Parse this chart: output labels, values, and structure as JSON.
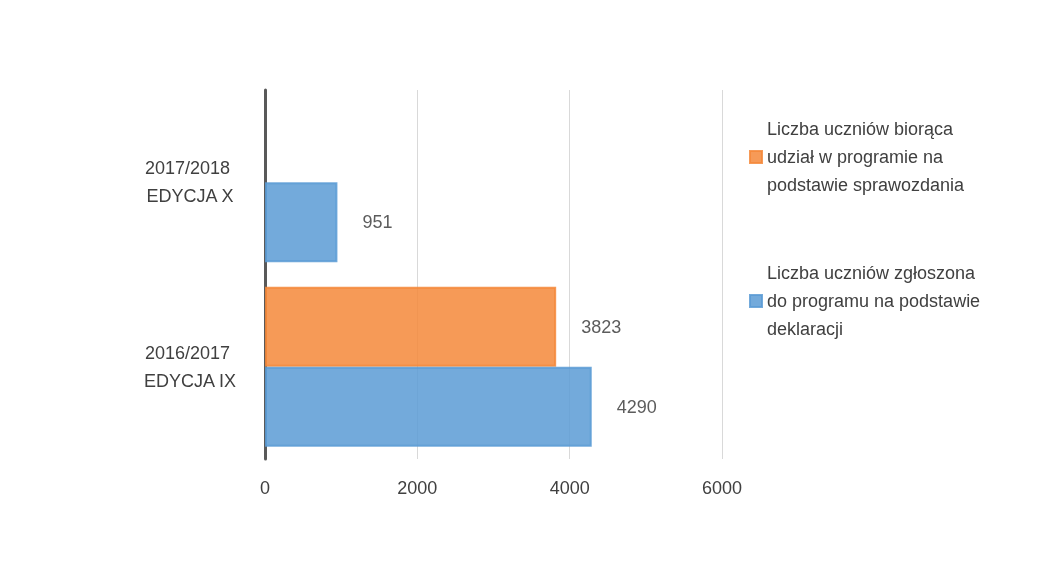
{
  "chart_data": {
    "type": "bar",
    "orientation": "horizontal",
    "categories": [
      "2017/2018 EDYCJA X",
      "2016/2017 EDYCJA IX"
    ],
    "series": [
      {
        "name": "Liczba uczniów biorąca udział w programie na podstawie sprawozdania",
        "color": "#f4883a",
        "values": [
          null,
          3823
        ]
      },
      {
        "name": "Liczba uczniów zgłoszona do programu na podstawie deklaracji",
        "color": "#5b9bd5",
        "values": [
          951,
          4290
        ]
      }
    ],
    "xlim": [
      0,
      6000
    ],
    "xticks": [
      0,
      2000,
      4000,
      6000
    ],
    "grid": "x",
    "legend": "right",
    "data_labels": true
  }
}
